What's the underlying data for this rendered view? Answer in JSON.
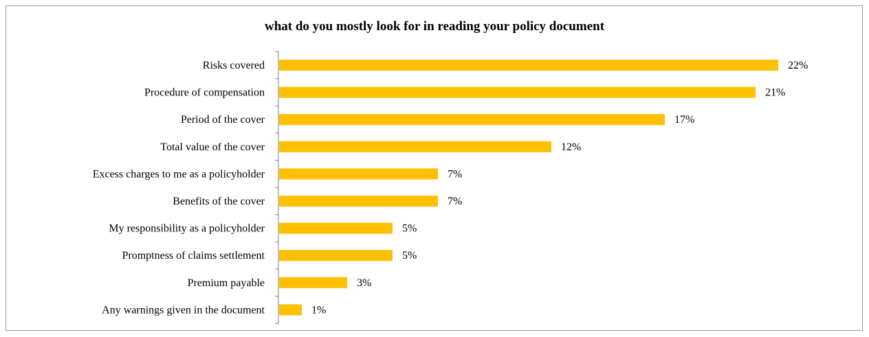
{
  "chart_data": {
    "type": "bar",
    "orientation": "horizontal",
    "title": "what do you mostly look for in reading your policy document",
    "categories": [
      "Risks covered",
      "Procedure of compensation",
      "Period of the cover",
      "Total value of the cover",
      "Excess charges to me as a policyholder",
      "Benefits of the cover",
      "My responsibility as a policyholder",
      "Promptness of claims settlement",
      "Premium payable",
      "Any warnings given in the document"
    ],
    "values": [
      22,
      21,
      17,
      12,
      7,
      7,
      5,
      5,
      3,
      1
    ],
    "value_labels": [
      "22%",
      "21%",
      "17%",
      "12%",
      "7%",
      "7%",
      "5%",
      "5%",
      "3%",
      "1%"
    ],
    "unit": "%",
    "grid": false,
    "legend": "none",
    "bar_color": "#FFC000"
  }
}
